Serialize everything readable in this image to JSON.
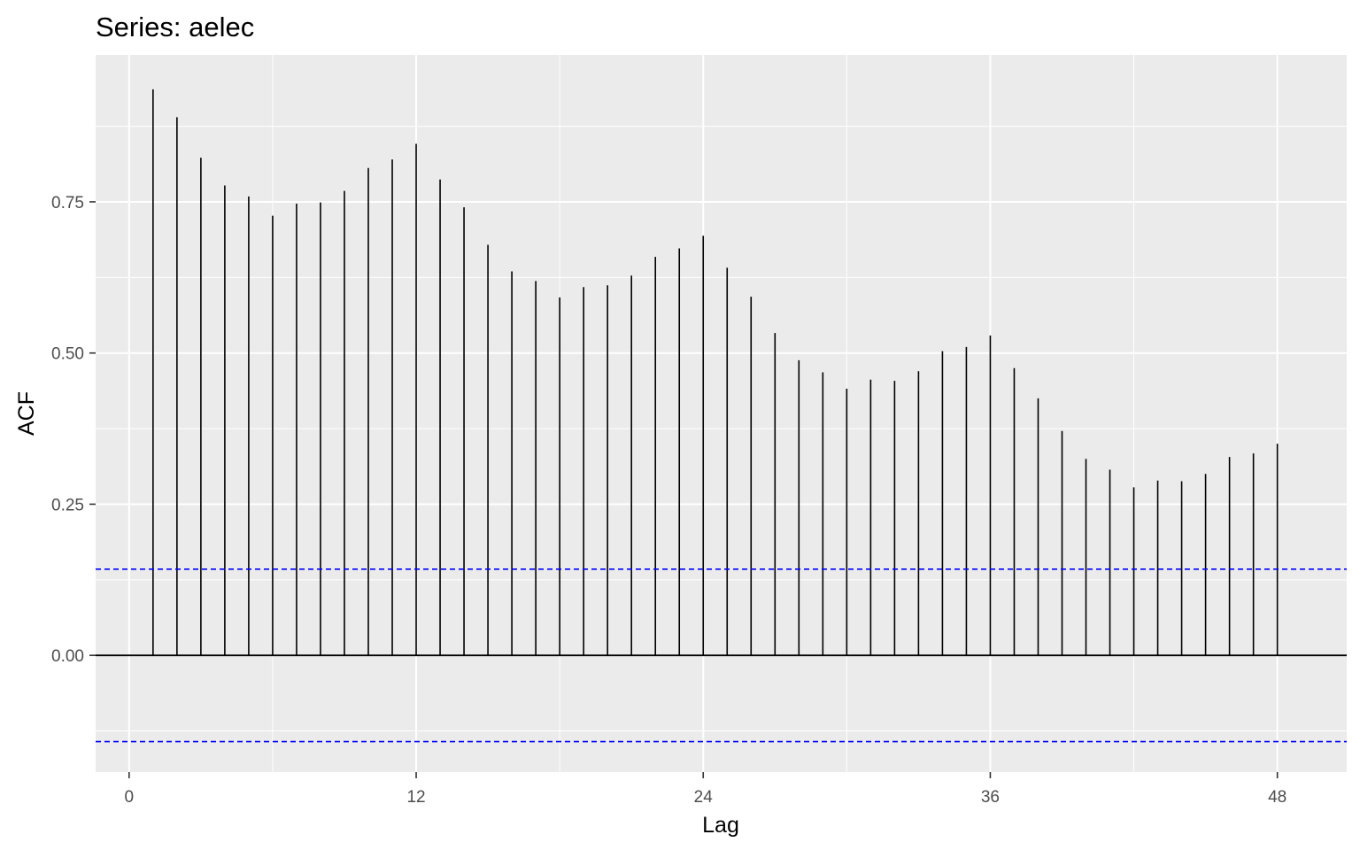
{
  "chart_data": {
    "type": "bar",
    "title": "Series: aelec",
    "xlabel": "Lag",
    "ylabel": "ACF",
    "x": [
      1,
      2,
      3,
      4,
      5,
      6,
      7,
      8,
      9,
      10,
      11,
      12,
      13,
      14,
      15,
      16,
      17,
      18,
      19,
      20,
      21,
      22,
      23,
      24,
      25,
      26,
      27,
      28,
      29,
      30,
      31,
      32,
      33,
      34,
      35,
      36,
      37,
      38,
      39,
      40,
      41,
      42,
      43,
      44,
      45,
      46,
      47,
      48
    ],
    "values": [
      0.936,
      0.89,
      0.823,
      0.777,
      0.759,
      0.727,
      0.747,
      0.749,
      0.768,
      0.806,
      0.82,
      0.846,
      0.787,
      0.741,
      0.679,
      0.635,
      0.619,
      0.592,
      0.609,
      0.612,
      0.628,
      0.659,
      0.673,
      0.694,
      0.641,
      0.593,
      0.533,
      0.488,
      0.468,
      0.441,
      0.456,
      0.454,
      0.47,
      0.503,
      0.51,
      0.529,
      0.475,
      0.425,
      0.371,
      0.325,
      0.307,
      0.278,
      0.289,
      0.288,
      0.3,
      0.328,
      0.334,
      0.35
    ],
    "confidence_bound": 0.1426,
    "xlim": [
      -1.4,
      50.9
    ],
    "ylim": [
      -0.193,
      0.993
    ],
    "x_ticks": [
      0,
      12,
      24,
      36,
      48
    ],
    "y_ticks": [
      0.0,
      0.25,
      0.5,
      0.75
    ],
    "x_tick_labels": [
      "0",
      "12",
      "24",
      "36",
      "48"
    ],
    "y_tick_labels": [
      "0.00",
      "0.25",
      "0.50",
      "0.75"
    ],
    "grid": true,
    "colors": {
      "panel_background": "#ebebeb",
      "grid_major": "#ffffff",
      "bar": "#000000",
      "zero_line": "#000000",
      "confidence_line": "#0000ff",
      "tick_label": "#4d4d4d",
      "tick_mark": "#333333"
    }
  }
}
